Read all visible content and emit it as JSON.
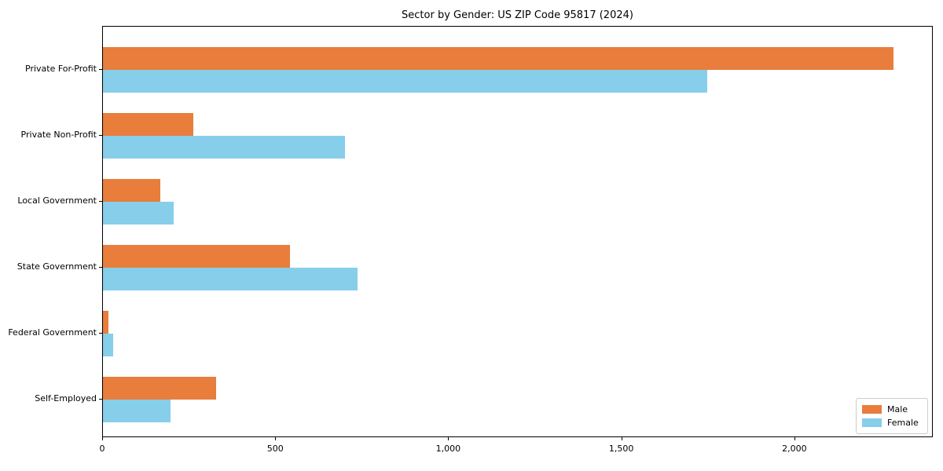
{
  "chart_data": {
    "type": "bar",
    "orientation": "horizontal",
    "title": "Sector by Gender: US ZIP Code 95817 (2024)",
    "categories": [
      "Private For-Profit",
      "Private Non-Profit",
      "Local Government",
      "State Government",
      "Federal Government",
      "Self-Employed"
    ],
    "series": [
      {
        "name": "Male",
        "color": "#E87D3C",
        "values": [
          2285,
          260,
          165,
          540,
          15,
          327
        ]
      },
      {
        "name": "Female",
        "color": "#87CEEB",
        "values": [
          1745,
          700,
          205,
          735,
          30,
          195
        ]
      }
    ],
    "xlim": [
      0,
      2400
    ],
    "xticks": [
      0,
      500,
      1000,
      1500,
      2000
    ],
    "xtick_labels": [
      "0",
      "500",
      "1,000",
      "1,500",
      "2,000"
    ],
    "xlabel": "",
    "ylabel": "",
    "grid": false,
    "legend_position": "lower right",
    "axis_color": "#000000",
    "background_color": "#ffffff"
  }
}
